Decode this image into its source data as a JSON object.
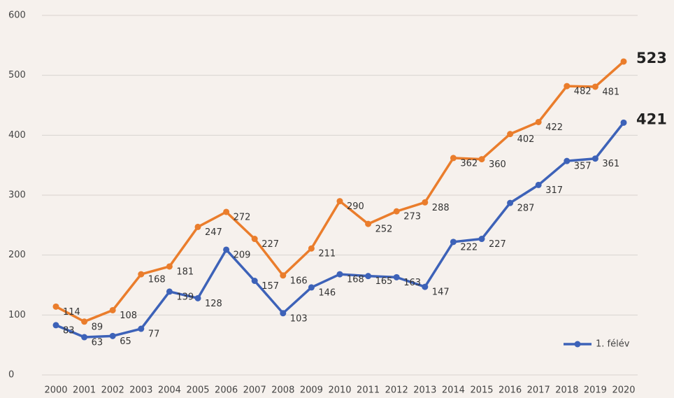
{
  "chart_data": {
    "type": "line",
    "categories": [
      "2000",
      "2001",
      "2002",
      "2003",
      "2004",
      "2005",
      "2006",
      "2007",
      "2008",
      "2009",
      "2010",
      "2011",
      "2012",
      "2013",
      "2014",
      "2015",
      "2016",
      "2017",
      "2018",
      "2019",
      "2020"
    ],
    "series": [
      {
        "color": "#ea7d2c",
        "values": [
          114,
          89,
          108,
          168,
          181,
          247,
          272,
          227,
          166,
          211,
          290,
          252,
          273,
          288,
          362,
          360,
          402,
          422,
          482,
          481,
          523
        ]
      },
      {
        "name": "1. félév",
        "color": "#3d62b8",
        "values": [
          83,
          63,
          65,
          77,
          139,
          128,
          209,
          157,
          103,
          146,
          168,
          165,
          163,
          147,
          222,
          227,
          287,
          317,
          357,
          361,
          421
        ]
      }
    ],
    "ylim": [
      0,
      600
    ],
    "yticks": [
      0,
      100,
      200,
      300,
      400,
      500,
      600
    ],
    "grid": true,
    "legend": "bottom-right"
  }
}
